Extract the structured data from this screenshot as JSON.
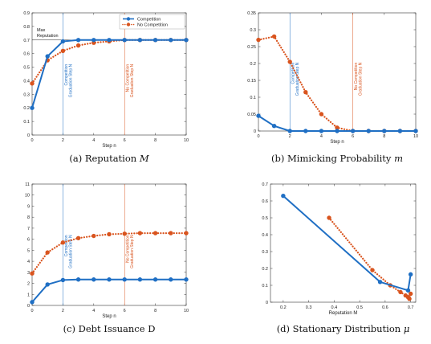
{
  "colors": {
    "competition": "#1f6fc4",
    "no_competition": "#d9541e",
    "axis": "#333333",
    "grid": "#e8e8e8"
  },
  "chart_data": [
    {
      "id": "a",
      "type": "line",
      "caption_prefix": "(a) Reputation ",
      "caption_math": "M",
      "xlabel": "Step n",
      "ylabel": "",
      "xlim": [
        0,
        10
      ],
      "ylim": [
        0,
        0.9
      ],
      "xticks": [
        "0",
        "2",
        "4",
        "6",
        "8",
        "10"
      ],
      "yticks": [
        "0",
        "0.1",
        "0.2",
        "0.3",
        "0.4",
        "0.5",
        "0.6",
        "0.7",
        "0.8",
        "0.9"
      ],
      "xtick_values": [
        0,
        2,
        4,
        6,
        8,
        10
      ],
      "ytick_values": [
        0,
        0.1,
        0.2,
        0.3,
        0.4,
        0.5,
        0.6,
        0.7,
        0.8,
        0.9
      ],
      "legend": {
        "placement": "top-right",
        "entries": [
          "Competition",
          "No Competition"
        ]
      },
      "annotations": [
        {
          "text1": "Max",
          "text2": "Reputation",
          "y": 0.7
        }
      ],
      "vlines": [
        {
          "x": 2,
          "series": "competition",
          "label1": "Competition",
          "label2": "Graduation Step N"
        },
        {
          "x": 6,
          "series": "no_competition",
          "label1": "No Competition",
          "label2": "Graduation Step N"
        }
      ],
      "hline": 0.7,
      "series": [
        {
          "key": "competition",
          "name": "Competition",
          "style": "solid",
          "x": [
            0,
            1,
            2,
            3,
            4,
            5,
            6,
            7,
            8,
            9,
            10
          ],
          "y": [
            0.2,
            0.58,
            0.69,
            0.7,
            0.7,
            0.7,
            0.7,
            0.7,
            0.7,
            0.7,
            0.7
          ]
        },
        {
          "key": "no_competition",
          "name": "No Competition",
          "style": "dotted",
          "x": [
            0,
            1,
            2,
            3,
            4,
            5,
            6,
            7,
            8,
            9,
            10
          ],
          "y": [
            0.38,
            0.55,
            0.62,
            0.66,
            0.68,
            0.69,
            0.7,
            0.7,
            0.7,
            0.7,
            0.7
          ]
        }
      ]
    },
    {
      "id": "b",
      "type": "line",
      "caption_prefix": "(b) Mimicking Probability ",
      "caption_math": "m",
      "xlabel": "Step n",
      "ylabel": "",
      "xlim": [
        0,
        10
      ],
      "ylim": [
        0,
        0.35
      ],
      "xticks": [
        "0",
        "2",
        "4",
        "6",
        "8",
        "10"
      ],
      "yticks": [
        "0",
        "0.05",
        "0.1",
        "0.15",
        "0.2",
        "0.25",
        "0.3",
        "0.35"
      ],
      "xtick_values": [
        0,
        2,
        4,
        6,
        8,
        10
      ],
      "ytick_values": [
        0,
        0.05,
        0.1,
        0.15,
        0.2,
        0.25,
        0.3,
        0.35
      ],
      "vlines": [
        {
          "x": 2,
          "series": "competition",
          "label1": "Competition",
          "label2": "Graduation Step N"
        },
        {
          "x": 6,
          "series": "no_competition",
          "label1": "No Competition",
          "label2": "Graduation Step N"
        }
      ],
      "series": [
        {
          "key": "competition",
          "name": "Competition",
          "style": "solid",
          "x": [
            0,
            1,
            2,
            3,
            4,
            5,
            6,
            7,
            8,
            9,
            10
          ],
          "y": [
            0.045,
            0.015,
            0,
            0,
            0,
            0,
            0,
            0,
            0,
            0,
            0
          ]
        },
        {
          "key": "no_competition",
          "name": "No Competition",
          "style": "dotted",
          "x": [
            0,
            1,
            2,
            3,
            4,
            5,
            6,
            7,
            8,
            9,
            10
          ],
          "y": [
            0.27,
            0.28,
            0.205,
            0.115,
            0.05,
            0.01,
            0,
            0,
            0,
            0,
            0
          ]
        }
      ]
    },
    {
      "id": "c",
      "type": "line",
      "caption_prefix": "(c) Debt Issuance D",
      "caption_math": "",
      "xlabel": "Step n",
      "ylabel": "",
      "xlim": [
        0,
        10
      ],
      "ylim": [
        0,
        11
      ],
      "xticks": [
        "0",
        "2",
        "4",
        "6",
        "8",
        "10"
      ],
      "yticks": [
        "0",
        "1",
        "2",
        "3",
        "4",
        "5",
        "6",
        "7",
        "8",
        "9",
        "10",
        "11"
      ],
      "xtick_values": [
        0,
        2,
        4,
        6,
        8,
        10
      ],
      "ytick_values": [
        0,
        1,
        2,
        3,
        4,
        5,
        6,
        7,
        8,
        9,
        10,
        11
      ],
      "vlines": [
        {
          "x": 2,
          "series": "competition",
          "label1": "Competition",
          "label2": "Graduation Step N"
        },
        {
          "x": 6,
          "series": "no_competition",
          "label1": "No Competition",
          "label2": "Graduation Step N"
        }
      ],
      "series": [
        {
          "key": "competition",
          "name": "Competition",
          "style": "solid",
          "x": [
            0,
            1,
            2,
            3,
            4,
            5,
            6,
            7,
            8,
            9,
            10
          ],
          "y": [
            0.3,
            1.9,
            2.3,
            2.35,
            2.35,
            2.35,
            2.35,
            2.35,
            2.35,
            2.35,
            2.35
          ]
        },
        {
          "key": "no_competition",
          "name": "No Competition",
          "style": "dotted",
          "x": [
            0,
            1,
            2,
            3,
            4,
            5,
            6,
            7,
            8,
            9,
            10
          ],
          "y": [
            2.9,
            4.8,
            5.7,
            6.1,
            6.3,
            6.45,
            6.5,
            6.55,
            6.55,
            6.55,
            6.55
          ]
        }
      ]
    },
    {
      "id": "d",
      "type": "line",
      "caption_prefix": "(d) Stationary Distribution ",
      "caption_math": "μ",
      "xlabel": "Reputation M",
      "ylabel": "",
      "xlim": [
        0.15,
        0.72
      ],
      "ylim": [
        0,
        0.7
      ],
      "xticks": [
        "0.2",
        "0.3",
        "0.4",
        "0.5",
        "0.6",
        "0.7"
      ],
      "yticks": [
        "0",
        "0.1",
        "0.2",
        "0.3",
        "0.4",
        "0.5",
        "0.6",
        "0.7"
      ],
      "xtick_values": [
        0.2,
        0.3,
        0.4,
        0.5,
        0.6,
        0.7
      ],
      "ytick_values": [
        0,
        0.1,
        0.2,
        0.3,
        0.4,
        0.5,
        0.6,
        0.7
      ],
      "vlines": [],
      "series": [
        {
          "key": "competition",
          "name": "Competition",
          "style": "solid",
          "x": [
            0.2,
            0.58,
            0.69,
            0.7
          ],
          "y": [
            0.63,
            0.12,
            0.07,
            0.165
          ]
        },
        {
          "key": "no_competition",
          "name": "No Competition",
          "style": "dotted",
          "x": [
            0.38,
            0.55,
            0.62,
            0.66,
            0.68,
            0.69,
            0.695,
            0.7
          ],
          "y": [
            0.5,
            0.19,
            0.1,
            0.06,
            0.04,
            0.03,
            0.02,
            0.05
          ]
        }
      ]
    }
  ]
}
